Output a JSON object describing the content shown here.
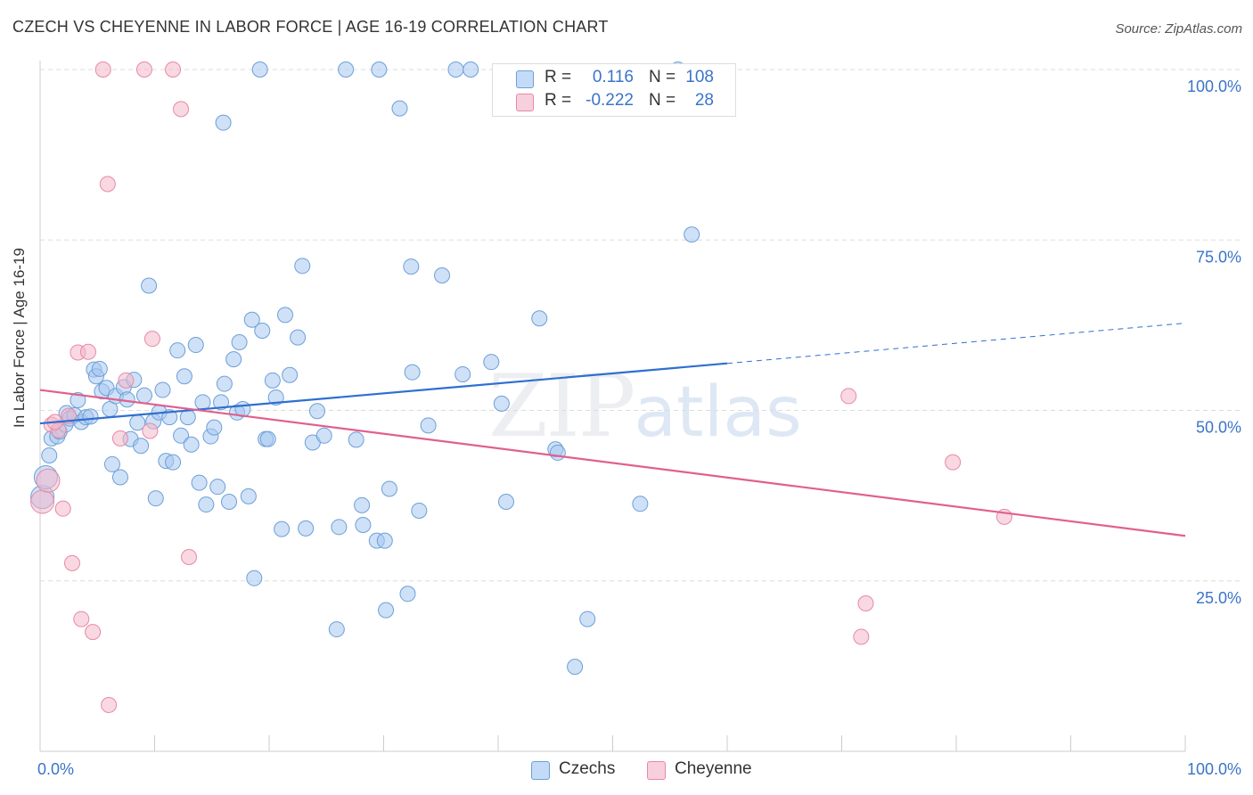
{
  "title": "CZECH VS CHEYENNE IN LABOR FORCE | AGE 16-19 CORRELATION CHART",
  "source": "Source: ZipAtlas.com",
  "watermark": {
    "zip": "ZIP",
    "atlas": "atlas"
  },
  "legend_top": [
    {
      "r_label": "R =",
      "r_value": "0.116",
      "n_label": "N =",
      "n_value": "108",
      "color": "#a8c8f0"
    },
    {
      "r_label": "R =",
      "r_value": "-0.222",
      "n_label": "N =",
      "n_value": "28",
      "color": "#f4b8cb"
    }
  ],
  "chart_data": {
    "type": "scatter",
    "ylabel": "In Labor Force | Age 16-19",
    "xlim": [
      0,
      100
    ],
    "ylim": [
      0,
      100
    ],
    "x_tick_labels": [
      "0.0%",
      "100.0%"
    ],
    "y_ticks": [
      25,
      50,
      75,
      100
    ],
    "y_tick_labels": [
      "25.0%",
      "50.0%",
      "75.0%",
      "100.0%"
    ],
    "grid": true,
    "series": [
      {
        "name": "Czechs",
        "color": "#a8c8f0",
        "stroke": "#6d9fd8",
        "line_color": "#2f6fd0",
        "trend": {
          "x0": 0,
          "y0": 48.1,
          "x1": 60,
          "y1": 56.9,
          "x_dash_end": 100,
          "y_dash_end": 62.8
        },
        "points": [
          [
            0.2,
            37.3
          ],
          [
            0.5,
            40.2
          ],
          [
            0.8,
            43.4
          ],
          [
            1.0,
            45.9
          ],
          [
            1.5,
            46.2
          ],
          [
            1.7,
            46.9
          ],
          [
            2.2,
            47.9
          ],
          [
            2.3,
            49.6
          ],
          [
            2.6,
            48.8
          ],
          [
            3.0,
            49.3
          ],
          [
            3.3,
            51.5
          ],
          [
            3.6,
            48.3
          ],
          [
            4.0,
            49.0
          ],
          [
            4.4,
            49.1
          ],
          [
            4.7,
            56.0
          ],
          [
            4.9,
            55.0
          ],
          [
            5.2,
            56.1
          ],
          [
            5.4,
            52.8
          ],
          [
            5.8,
            53.3
          ],
          [
            6.1,
            50.2
          ],
          [
            6.3,
            42.1
          ],
          [
            6.6,
            52.1
          ],
          [
            7.0,
            40.2
          ],
          [
            7.3,
            53.4
          ],
          [
            7.6,
            51.6
          ],
          [
            7.9,
            45.8
          ],
          [
            8.2,
            54.5
          ],
          [
            8.5,
            48.2
          ],
          [
            8.8,
            44.8
          ],
          [
            9.1,
            52.2
          ],
          [
            9.5,
            68.3
          ],
          [
            9.9,
            48.4
          ],
          [
            10.1,
            37.1
          ],
          [
            10.4,
            49.7
          ],
          [
            10.7,
            53.0
          ],
          [
            11.0,
            42.6
          ],
          [
            11.3,
            49.0
          ],
          [
            11.6,
            42.4
          ],
          [
            12.0,
            58.8
          ],
          [
            12.3,
            46.3
          ],
          [
            12.6,
            55.0
          ],
          [
            12.9,
            49.0
          ],
          [
            13.2,
            45.0
          ],
          [
            13.6,
            59.6
          ],
          [
            13.9,
            39.4
          ],
          [
            14.2,
            51.2
          ],
          [
            14.5,
            36.2
          ],
          [
            14.9,
            46.2
          ],
          [
            15.2,
            47.5
          ],
          [
            15.5,
            38.8
          ],
          [
            15.8,
            51.2
          ],
          [
            16.1,
            53.9
          ],
          [
            16.5,
            36.6
          ],
          [
            16.9,
            57.5
          ],
          [
            17.2,
            49.7
          ],
          [
            17.4,
            60.0
          ],
          [
            17.7,
            50.2
          ],
          [
            18.2,
            37.4
          ],
          [
            18.5,
            63.3
          ],
          [
            18.7,
            25.4
          ],
          [
            19.2,
            100.0
          ],
          [
            19.4,
            61.7
          ],
          [
            19.7,
            45.8
          ],
          [
            19.9,
            45.8
          ],
          [
            20.3,
            54.4
          ],
          [
            20.6,
            51.9
          ],
          [
            21.1,
            32.6
          ],
          [
            21.4,
            64.0
          ],
          [
            21.8,
            55.2
          ],
          [
            22.5,
            60.7
          ],
          [
            22.9,
            71.2
          ],
          [
            23.2,
            32.7
          ],
          [
            23.8,
            45.3
          ],
          [
            24.2,
            49.9
          ],
          [
            24.8,
            46.3
          ],
          [
            25.9,
            17.9
          ],
          [
            26.1,
            32.9
          ],
          [
            26.7,
            100.0
          ],
          [
            27.6,
            45.7
          ],
          [
            28.1,
            36.1
          ],
          [
            28.2,
            33.2
          ],
          [
            29.4,
            30.9
          ],
          [
            29.6,
            100.0
          ],
          [
            30.1,
            30.9
          ],
          [
            30.2,
            20.7
          ],
          [
            30.5,
            38.5
          ],
          [
            31.4,
            94.3
          ],
          [
            32.1,
            23.1
          ],
          [
            33.1,
            35.3
          ],
          [
            32.5,
            55.6
          ],
          [
            32.4,
            71.1
          ],
          [
            33.9,
            47.8
          ],
          [
            35.1,
            69.8
          ],
          [
            36.3,
            100.0
          ],
          [
            36.9,
            55.3
          ],
          [
            37.6,
            100.0
          ],
          [
            39.4,
            57.1
          ],
          [
            40.3,
            51.0
          ],
          [
            40.7,
            36.6
          ],
          [
            43.6,
            63.5
          ],
          [
            45.0,
            44.3
          ],
          [
            45.2,
            43.8
          ],
          [
            46.7,
            12.4
          ],
          [
            47.8,
            19.4
          ],
          [
            52.4,
            36.3
          ],
          [
            55.7,
            100.0
          ],
          [
            56.9,
            75.8
          ],
          [
            16.0,
            92.2
          ]
        ]
      },
      {
        "name": "Cheyenne",
        "color": "#f4b8cb",
        "stroke": "#e58aa7",
        "line_color": "#e0608e",
        "trend": {
          "x0": 0,
          "y0": 53.0,
          "x1": 100,
          "y1": 31.6
        },
        "points": [
          [
            0.2,
            36.6
          ],
          [
            0.7,
            39.7
          ],
          [
            1.0,
            47.9
          ],
          [
            1.6,
            47.1
          ],
          [
            2.0,
            35.6
          ],
          [
            2.5,
            49.2
          ],
          [
            2.8,
            27.6
          ],
          [
            3.3,
            58.5
          ],
          [
            3.6,
            19.4
          ],
          [
            4.2,
            58.6
          ],
          [
            4.6,
            17.5
          ],
          [
            5.5,
            100.0
          ],
          [
            5.9,
            83.2
          ],
          [
            6.0,
            6.8
          ],
          [
            7.0,
            45.9
          ],
          [
            7.5,
            54.4
          ],
          [
            9.1,
            100.0
          ],
          [
            9.6,
            47.0
          ],
          [
            9.8,
            60.5
          ],
          [
            11.6,
            100.0
          ],
          [
            12.3,
            94.2
          ],
          [
            13.0,
            28.5
          ],
          [
            70.6,
            52.1
          ],
          [
            71.7,
            16.8
          ],
          [
            72.1,
            21.7
          ],
          [
            79.7,
            42.4
          ],
          [
            84.2,
            34.4
          ],
          [
            1.3,
            48.3
          ]
        ]
      }
    ]
  },
  "legend_bottom": [
    {
      "label": "Czechs",
      "color": "#a8c8f0"
    },
    {
      "label": "Cheyenne",
      "color": "#f4b8cb"
    }
  ]
}
